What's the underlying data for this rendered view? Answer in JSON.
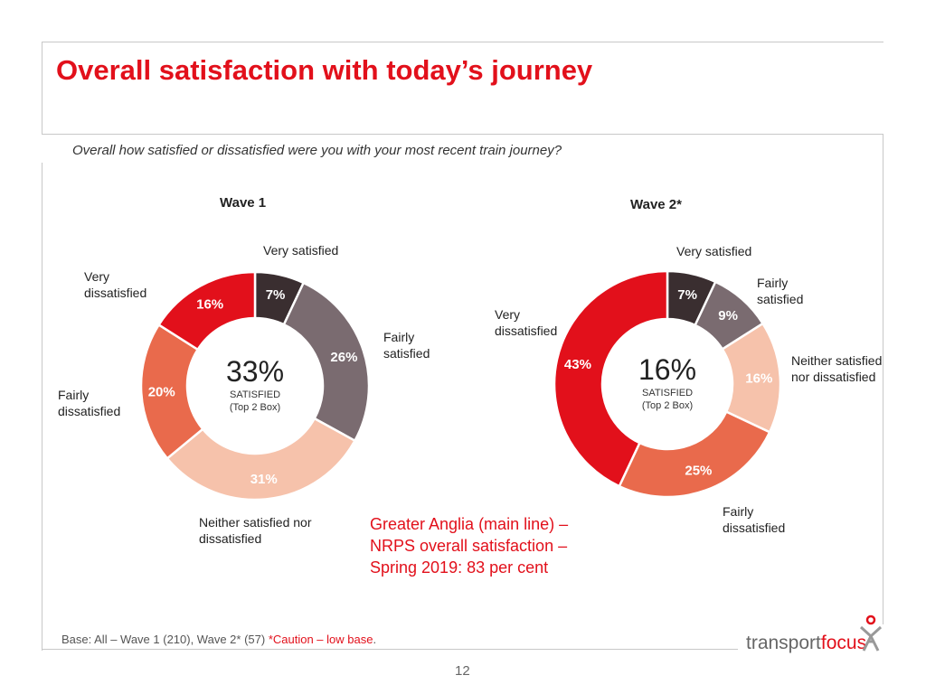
{
  "title": "Overall satisfaction with today’s journey",
  "question": "Overall how satisfied or dissatisfied were you with your most recent train journey?",
  "colors": {
    "very_satisfied": "#3a2e30",
    "fairly_satisfied": "#7a6b70",
    "neither": "#f6c2ab",
    "fairly_dissatisfied": "#e96a4c",
    "very_dissatisfied": "#e2101b",
    "accent": "#e2101b"
  },
  "chart_data": [
    {
      "type": "pie",
      "title": "Wave 1",
      "categories": [
        "Very satisfied",
        "Fairly satisfied",
        "Neither satisfied nor dissatisfied",
        "Fairly dissatisfied",
        "Very dissatisfied"
      ],
      "values": [
        7,
        26,
        31,
        20,
        16
      ],
      "value_labels": [
        "7%",
        "26%",
        "31%",
        "20%",
        "16%"
      ],
      "center_value": "33%",
      "center_label": "SATISFIED",
      "center_sub": "(Top 2 Box)",
      "donut": true
    },
    {
      "type": "pie",
      "title": "Wave 2*",
      "categories": [
        "Very satisfied",
        "Fairly satisfied",
        "Neither satisfied nor dissatisfied",
        "Fairly dissatisfied",
        "Very dissatisfied"
      ],
      "values": [
        7,
        9,
        16,
        25,
        43
      ],
      "value_labels": [
        "7%",
        "9%",
        "16%",
        "25%",
        "43%"
      ],
      "center_value": "16%",
      "center_label": "SATISFIED",
      "center_sub": "(Top 2 Box)",
      "donut": true
    }
  ],
  "labels": {
    "w1": {
      "very_satisfied": "Very satisfied",
      "fairly_satisfied": "Fairly\nsatisfied",
      "neither": "Neither satisfied nor\ndissatisfied",
      "fairly_dissatisfied": "Fairly\ndissatisfied",
      "very_dissatisfied": "Very\ndissatisfied"
    },
    "w2": {
      "very_satisfied": "Very satisfied",
      "fairly_satisfied": "Fairly\nsatisfied",
      "neither": "Neither satisfied\nnor dissatisfied",
      "fairly_dissatisfied": "Fairly\ndissatisfied",
      "very_dissatisfied": "Very\ndissatisfied"
    }
  },
  "note": "Greater Anglia (main line) –\nNRPS overall satisfaction –\nSpring 2019: 83 per cent",
  "base": {
    "text": "Base: All – Wave 1 (210), Wave 2* (57) ",
    "caution": "*Caution – low base",
    "end": "."
  },
  "logo": {
    "part1": "transport",
    "part2": "focus"
  },
  "page_number": "12"
}
